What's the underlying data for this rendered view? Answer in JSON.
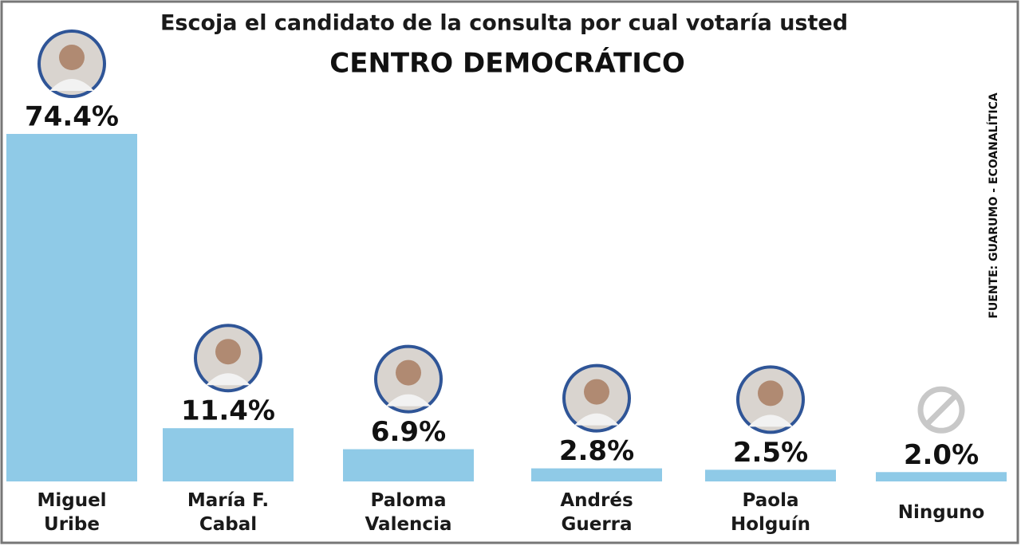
{
  "chart_data": {
    "type": "bar",
    "title": "Escoja el candidato de la consulta por cual votaría usted",
    "subtitle": "CENTRO DEMOCRÁTICO",
    "source": "FUENTE: GUARUMO - ECOANALÍTICA",
    "categories": [
      "Miguel Uribe",
      "María F. Cabal",
      "Paloma Valencia",
      "Andrés Guerra",
      "Paola Holguín",
      "Ninguno"
    ],
    "values": [
      74.4,
      11.4,
      6.9,
      2.8,
      2.5,
      2.0
    ],
    "value_labels": [
      "74.4%",
      "11.4%",
      "6.9%",
      "2.8%",
      "2.5%",
      "2.0%"
    ],
    "color": "#8fcae7"
  }
}
